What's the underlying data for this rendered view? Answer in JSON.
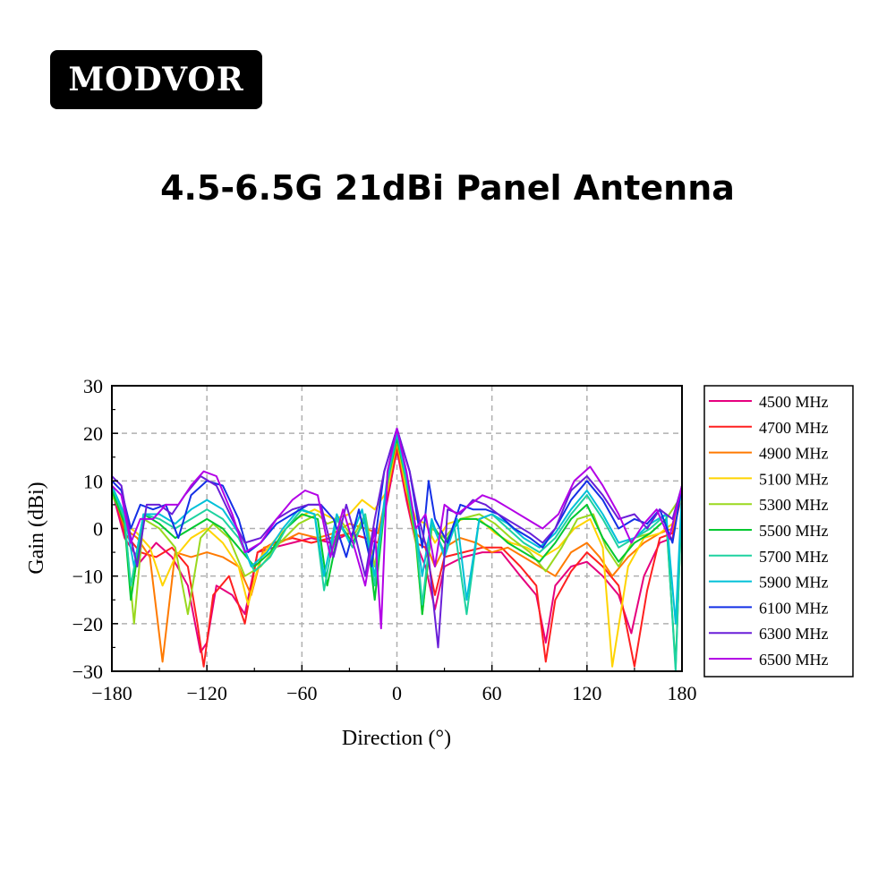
{
  "brand": {
    "logo_text": "MODVOR"
  },
  "heading": {
    "title": "4.5-6.5G 21dBi Panel Antenna"
  },
  "chart_data": {
    "type": "line",
    "xlabel": "Direction (°)",
    "ylabel": "Gain (dBi)",
    "xlim": [
      -180,
      180
    ],
    "ylim": [
      -30,
      30
    ],
    "xticks": [
      -180,
      -120,
      -60,
      0,
      60,
      120,
      180
    ],
    "yticks": [
      -30,
      -20,
      -10,
      0,
      10,
      20,
      30
    ],
    "x_tick_labels": [
      "−180",
      "−120",
      "−60",
      "0",
      "60",
      "120",
      "180"
    ],
    "y_tick_labels": [
      "−30",
      "−20",
      "−10",
      "0",
      "10",
      "20",
      "30"
    ],
    "grid": true,
    "legend_position": "right",
    "series": [
      {
        "name": "4500 MHz",
        "color": "#e6007e",
        "x": [
          -180,
          -172,
          -162,
          -152,
          -142,
          -132,
          -124,
          -120,
          -114,
          -104,
          -96,
          -88,
          -78,
          -66,
          -54,
          -42,
          -30,
          -20,
          -12,
          -6,
          0,
          6,
          12,
          18,
          24,
          30,
          42,
          54,
          66,
          78,
          88,
          94,
          100,
          110,
          120,
          130,
          140,
          148,
          156,
          166,
          174,
          180
        ],
        "y": [
          8,
          -2,
          -7,
          -3,
          -6,
          -12,
          -26,
          -24,
          -12,
          -14,
          -18,
          -5,
          -4,
          -3,
          -2,
          -3,
          -1,
          -2,
          -3,
          6,
          16.5,
          6,
          -3,
          -8,
          -17,
          -8,
          -6,
          -5,
          -5,
          -10,
          -14,
          -24,
          -12,
          -8,
          -7,
          -10,
          -14,
          -22,
          -10,
          -3,
          -2,
          8
        ]
      },
      {
        "name": "4700 MHz",
        "color": "#ff2020",
        "x": [
          -180,
          -172,
          -162,
          -152,
          -142,
          -132,
          -126,
          -122,
          -116,
          -106,
          -96,
          -88,
          -78,
          -66,
          -54,
          -42,
          -30,
          -20,
          -12,
          -6,
          0,
          6,
          12,
          18,
          24,
          30,
          42,
          54,
          66,
          78,
          88,
          94,
          100,
          110,
          120,
          130,
          140,
          150,
          158,
          166,
          174,
          180
        ],
        "y": [
          9,
          -1,
          -5,
          -6,
          -4,
          -8,
          -20,
          -29,
          -14,
          -10,
          -20,
          -5,
          -3,
          -2,
          -3,
          -2,
          -1,
          -2,
          -3,
          7,
          17,
          7,
          -3,
          -4,
          -14,
          -6,
          -5,
          -4,
          -4,
          -8,
          -12,
          -28,
          -15,
          -9,
          -5,
          -8,
          -12,
          -29,
          -13,
          -2,
          -1,
          7
        ]
      },
      {
        "name": "4900 MHz",
        "color": "#ff7a00",
        "x": [
          -180,
          -172,
          -164,
          -156,
          -148,
          -140,
          -130,
          -120,
          -110,
          -100,
          -92,
          -84,
          -74,
          -62,
          -50,
          -40,
          -30,
          -20,
          -12,
          -6,
          0,
          6,
          12,
          18,
          24,
          30,
          40,
          50,
          60,
          70,
          80,
          90,
          100,
          110,
          120,
          128,
          136,
          146,
          156,
          166,
          174,
          180
        ],
        "y": [
          9,
          0,
          -2,
          -6,
          -28,
          -5,
          -6,
          -5,
          -6,
          -8,
          -14,
          -4,
          -3,
          -1,
          -2,
          -1,
          1,
          0,
          -1,
          8,
          18,
          8,
          -1,
          -3,
          -8,
          -4,
          -2,
          -3,
          -5,
          -4,
          -6,
          -8,
          -10,
          -5,
          -3,
          -6,
          -10,
          -6,
          -3,
          -1,
          0,
          7
        ]
      },
      {
        "name": "5100 MHz",
        "color": "#ffd400",
        "x": [
          -180,
          -172,
          -164,
          -156,
          -148,
          -140,
          -130,
          -120,
          -110,
          -100,
          -94,
          -86,
          -76,
          -64,
          -52,
          -40,
          -30,
          -22,
          -14,
          -6,
          0,
          6,
          12,
          18,
          24,
          32,
          42,
          52,
          62,
          72,
          82,
          92,
          102,
          112,
          122,
          130,
          136,
          146,
          156,
          166,
          174,
          180
        ],
        "y": [
          8,
          1,
          -1,
          -4,
          -12,
          -6,
          -2,
          0,
          -3,
          -8,
          -16,
          -6,
          -2,
          2,
          4,
          2,
          3,
          6,
          4,
          8,
          19,
          8,
          2,
          1,
          -3,
          1,
          2,
          2,
          -1,
          -3,
          -4,
          -6,
          -4,
          0,
          2,
          -4,
          -29,
          -8,
          -2,
          -1,
          1,
          7
        ]
      },
      {
        "name": "5300 MHz",
        "color": "#9ad81e",
        "x": [
          -180,
          -172,
          -166,
          -160,
          -150,
          -140,
          -132,
          -124,
          -116,
          -106,
          -96,
          -86,
          -74,
          -62,
          -50,
          -44,
          -36,
          -28,
          -20,
          -14,
          -6,
          0,
          6,
          12,
          16,
          22,
          30,
          40,
          52,
          62,
          72,
          84,
          94,
          104,
          114,
          124,
          132,
          140,
          150,
          160,
          170,
          180
        ],
        "y": [
          7,
          2,
          -20,
          2,
          0,
          -4,
          -18,
          -2,
          1,
          -2,
          -10,
          -8,
          -3,
          1,
          3,
          1,
          2,
          -2,
          3,
          -8,
          9,
          19,
          9,
          -3,
          -18,
          0,
          -2,
          2,
          3,
          1,
          -2,
          -5,
          -9,
          -4,
          2,
          3,
          -4,
          -8,
          -2,
          -1,
          2,
          7
        ]
      },
      {
        "name": "5500 MHz",
        "color": "#00c830",
        "x": [
          -180,
          -172,
          -168,
          -160,
          -150,
          -140,
          -130,
          -120,
          -110,
          -100,
          -90,
          -80,
          -70,
          -60,
          -50,
          -44,
          -36,
          -28,
          -20,
          -14,
          -6,
          0,
          6,
          12,
          16,
          22,
          30,
          40,
          50,
          60,
          70,
          80,
          90,
          100,
          110,
          120,
          130,
          140,
          150,
          160,
          170,
          176,
          180
        ],
        "y": [
          8,
          1,
          -15,
          3,
          1,
          -2,
          0,
          2,
          0,
          -4,
          -8,
          -5,
          0,
          3,
          2,
          -12,
          1,
          -3,
          2,
          -15,
          10,
          19,
          10,
          -2,
          -18,
          1,
          -3,
          2,
          2,
          0,
          -3,
          -5,
          -7,
          -3,
          2,
          5,
          -2,
          -7,
          -3,
          -1,
          2,
          -29,
          7
        ]
      },
      {
        "name": "5700 MHz",
        "color": "#1ed2a0",
        "x": [
          -180,
          -172,
          -168,
          -160,
          -150,
          -140,
          -130,
          -120,
          -110,
          -100,
          -90,
          -80,
          -70,
          -60,
          -52,
          -46,
          -38,
          -28,
          -20,
          -14,
          -6,
          0,
          6,
          12,
          16,
          22,
          30,
          36,
          44,
          52,
          60,
          70,
          80,
          90,
          100,
          110,
          120,
          130,
          140,
          150,
          160,
          170,
          176,
          180
        ],
        "y": [
          9,
          2,
          -12,
          3,
          2,
          0,
          2,
          4,
          2,
          -2,
          -9,
          -6,
          0,
          4,
          3,
          -13,
          2,
          -4,
          3,
          -12,
          10,
          20,
          10,
          -1,
          -16,
          1,
          -5,
          1,
          -18,
          2,
          3,
          0,
          -3,
          -5,
          -2,
          3,
          7,
          2,
          -4,
          -2,
          0,
          3,
          -30,
          8
        ]
      },
      {
        "name": "5900 MHz",
        "color": "#00c0d8",
        "x": [
          -180,
          -172,
          -166,
          -160,
          -150,
          -140,
          -130,
          -120,
          -110,
          -100,
          -92,
          -82,
          -72,
          -62,
          -52,
          -46,
          -38,
          -30,
          -22,
          -14,
          -6,
          0,
          6,
          12,
          16,
          22,
          30,
          38,
          44,
          52,
          60,
          70,
          80,
          90,
          100,
          110,
          120,
          130,
          140,
          150,
          160,
          170,
          176,
          180
        ],
        "y": [
          9,
          3,
          -8,
          3,
          3,
          1,
          4,
          6,
          4,
          -1,
          -8,
          -5,
          0,
          4,
          3,
          -10,
          3,
          -3,
          4,
          -10,
          11,
          20,
          11,
          0,
          -10,
          2,
          -6,
          2,
          -15,
          2,
          3,
          1,
          -2,
          -4,
          -1,
          4,
          8,
          3,
          -3,
          -2,
          1,
          3,
          -20,
          8
        ]
      },
      {
        "name": "6100 MHz",
        "color": "#1430e6",
        "x": [
          -180,
          -174,
          -168,
          -162,
          -154,
          -146,
          -138,
          -130,
          -120,
          -110,
          -100,
          -94,
          -86,
          -76,
          -66,
          -56,
          -48,
          -40,
          -32,
          -24,
          -16,
          -8,
          0,
          8,
          16,
          20,
          24,
          32,
          40,
          48,
          56,
          64,
          74,
          84,
          92,
          100,
          110,
          120,
          130,
          140,
          150,
          158,
          166,
          174,
          180
        ],
        "y": [
          10,
          8,
          0,
          5,
          4,
          5,
          -2,
          7,
          10,
          9,
          2,
          -5,
          -3,
          1,
          3,
          5,
          5,
          2,
          -6,
          4,
          -8,
          12,
          21,
          12,
          -4,
          10,
          2,
          -3,
          5,
          4,
          4,
          3,
          0,
          -2,
          -4,
          0,
          6,
          10,
          6,
          0,
          2,
          1,
          4,
          -3,
          9
        ]
      },
      {
        "name": "6300 MHz",
        "color": "#6a1fd8",
        "x": [
          -180,
          -174,
          -168,
          -164,
          -158,
          -150,
          -142,
          -134,
          -124,
          -114,
          -104,
          -96,
          -86,
          -76,
          -66,
          -56,
          -48,
          -40,
          -32,
          -26,
          -20,
          -14,
          -8,
          0,
          8,
          14,
          20,
          26,
          32,
          40,
          48,
          56,
          64,
          74,
          84,
          92,
          100,
          110,
          120,
          130,
          140,
          150,
          158,
          166,
          174,
          180
        ],
        "y": [
          11,
          9,
          -2,
          -8,
          5,
          5,
          3,
          7,
          11,
          9,
          2,
          -3,
          -2,
          2,
          4,
          5,
          5,
          -6,
          5,
          -2,
          -10,
          2,
          12,
          21,
          12,
          2,
          -6,
          -25,
          4,
          3,
          6,
          5,
          3,
          1,
          -1,
          -3,
          0,
          8,
          11,
          7,
          2,
          3,
          0,
          4,
          2,
          9
        ]
      },
      {
        "name": "6500 MHz",
        "color": "#b300e6",
        "x": [
          -180,
          -174,
          -168,
          -162,
          -154,
          -146,
          -138,
          -130,
          -122,
          -114,
          -104,
          -96,
          -86,
          -76,
          -66,
          -58,
          -50,
          -42,
          -34,
          -26,
          -20,
          -14,
          -10,
          -6,
          0,
          6,
          12,
          18,
          24,
          30,
          38,
          46,
          54,
          62,
          72,
          82,
          92,
          102,
          112,
          122,
          130,
          140,
          148,
          156,
          164,
          172,
          180
        ],
        "y": [
          9,
          7,
          -3,
          2,
          2,
          5,
          5,
          9,
          12,
          11,
          3,
          -5,
          -3,
          2,
          6,
          8,
          7,
          -6,
          4,
          -5,
          -12,
          0,
          -21,
          12,
          21,
          12,
          0,
          3,
          -8,
          5,
          3,
          5,
          7,
          6,
          4,
          2,
          0,
          3,
          10,
          13,
          9,
          3,
          -3,
          1,
          4,
          -2,
          9
        ]
      }
    ]
  }
}
